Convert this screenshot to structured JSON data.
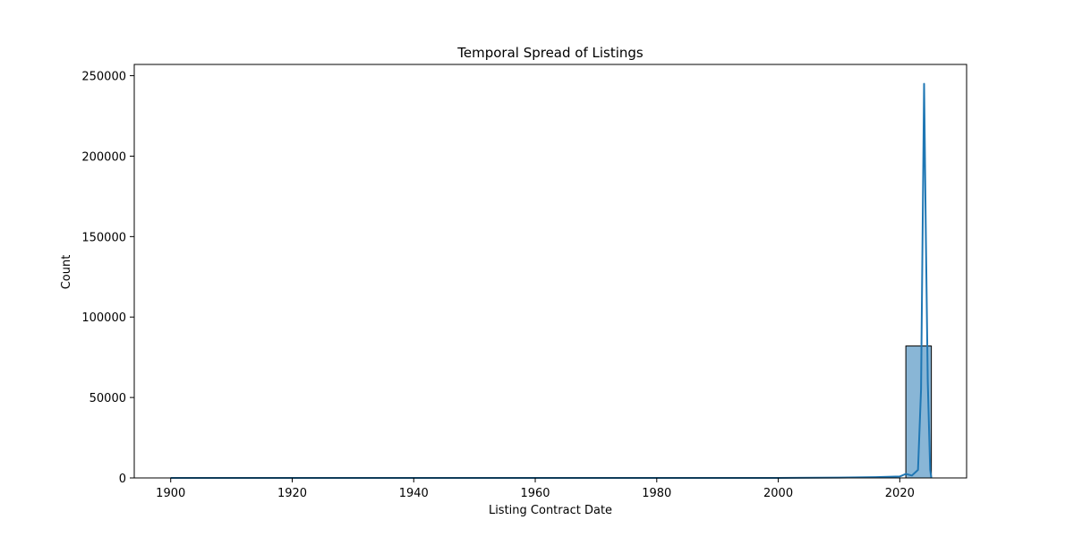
{
  "chart_data": {
    "type": "bar",
    "title": "Temporal Spread of Listings",
    "xlabel": "Listing Contract Date",
    "ylabel": "Count",
    "xlim": [
      1894,
      2031
    ],
    "ylim": [
      0,
      257000
    ],
    "x_ticks": [
      1900,
      1920,
      1940,
      1960,
      1980,
      2000,
      2020
    ],
    "y_ticks": [
      0,
      50000,
      100000,
      150000,
      200000,
      250000
    ],
    "grid": false,
    "legend": "none",
    "bars": [
      {
        "x0": 2021.0,
        "x1": 2025.2,
        "value": 82000
      }
    ],
    "series": [
      {
        "type": "kde-line",
        "x": [
          1900,
          1950,
          2000,
          2010,
          2016,
          2020,
          2021,
          2022,
          2023,
          2023.5,
          2024,
          2024.3,
          2024.6,
          2025,
          2025.2
        ],
        "y": [
          0,
          0,
          0,
          200,
          500,
          900,
          2500,
          1500,
          5000,
          55000,
          245000,
          150000,
          60000,
          5000,
          0
        ]
      }
    ],
    "colors": {
      "bar_fill": "#89b6d6",
      "bar_edge": "#000000",
      "line": "#1f77b4",
      "axes": "#000000"
    }
  }
}
